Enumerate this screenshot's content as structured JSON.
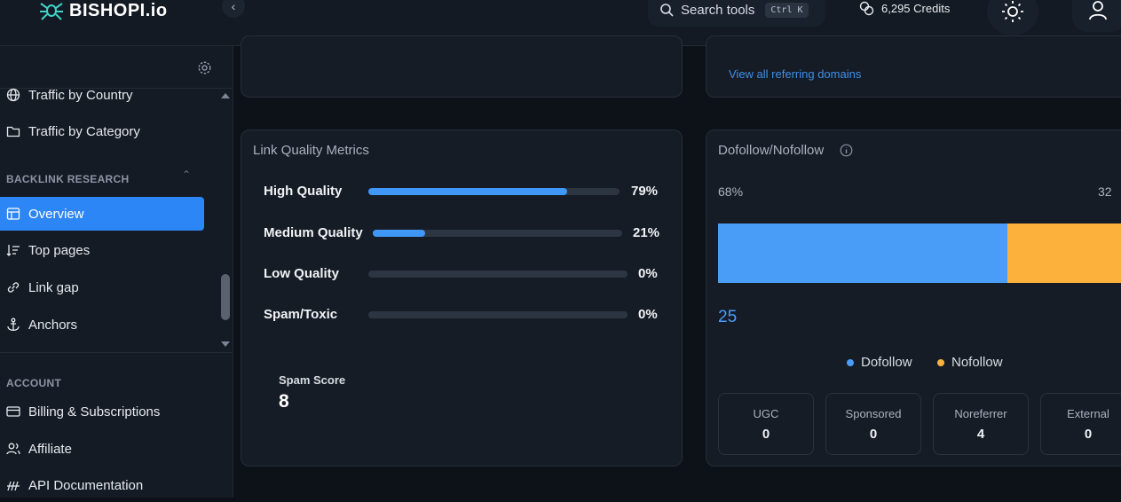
{
  "app": {
    "brand": "BISHOPI.io"
  },
  "header": {
    "search_label": "Search tools",
    "search_shortcut": "Ctrl K",
    "credits_label": "6,295 Credits"
  },
  "sidebar": {
    "top_items": [
      {
        "label": "Traffic by Country",
        "icon": "globe-icon"
      },
      {
        "label": "Traffic by Category",
        "icon": "folder-icon"
      }
    ],
    "backlink_section": "BACKLINK RESEARCH",
    "backlink_items": [
      {
        "label": "Overview",
        "icon": "table-icon",
        "active": true
      },
      {
        "label": "Top pages",
        "icon": "sort-icon"
      },
      {
        "label": "Link gap",
        "icon": "link-icon"
      },
      {
        "label": "Anchors",
        "icon": "anchor-icon"
      }
    ],
    "account_section": "ACCOUNT",
    "account_items": [
      {
        "label": "Billing & Subscriptions",
        "icon": "card-icon"
      },
      {
        "label": "Affiliate",
        "icon": "users-icon"
      },
      {
        "label": "API Documentation",
        "icon": "api-icon"
      }
    ]
  },
  "referring": {
    "link_label": "View all referring domains"
  },
  "link_quality": {
    "title": "Link Quality Metrics",
    "metrics": [
      {
        "label": "High Quality",
        "percent_label": "79%",
        "value": 0.79
      },
      {
        "label": "Medium Quality",
        "percent_label": "21%",
        "value": 0.21
      },
      {
        "label": "Low Quality",
        "percent_label": "0%",
        "value": 0
      },
      {
        "label": "Spam/Toxic",
        "percent_label": "0%",
        "value": 0
      }
    ],
    "spam_score_label": "Spam Score",
    "spam_score_value": "8"
  },
  "dofollow": {
    "title": "Dofollow/Nofollow",
    "dofollow_percent_label": "68%",
    "nofollow_percent_label": "32",
    "dofollow_share": 0.68,
    "dofollow_count": "25",
    "legend": {
      "dofollow": "Dofollow",
      "nofollow": "Nofollow"
    },
    "colors": {
      "dofollow": "#4a9df7",
      "nofollow": "#fbb13c"
    },
    "stats": [
      {
        "label": "UGC",
        "value": "0"
      },
      {
        "label": "Sponsored",
        "value": "0"
      },
      {
        "label": "Noreferrer",
        "value": "4"
      },
      {
        "label": "External",
        "value": "0"
      }
    ]
  }
}
